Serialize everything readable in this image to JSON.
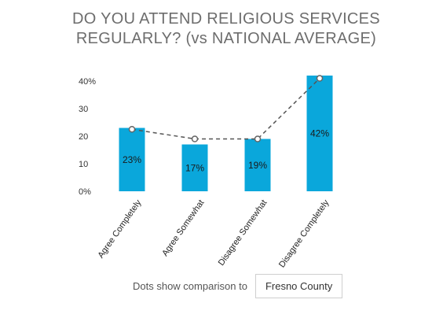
{
  "title": "DO YOU ATTEND RELIGIOUS SERVICES REGULARLY? (vs NATIONAL AVERAGE)",
  "footer": {
    "text": "Dots show comparison to",
    "selected": "Fresno County"
  },
  "colors": {
    "bar": "#0aa7db",
    "line": "#555555",
    "dot_stroke": "#666666"
  },
  "chart_data": {
    "type": "bar",
    "title": "DO YOU ATTEND RELIGIOUS SERVICES REGULARLY? (vs NATIONAL AVERAGE)",
    "categories": [
      "Agree Completely",
      "Agree Somewhat",
      "Disagree Somewhat",
      "Disagree Completely"
    ],
    "series": [
      {
        "values": [
          23,
          17,
          19,
          42
        ],
        "labels": [
          "23%",
          "17%",
          "19%",
          "42%"
        ]
      },
      {
        "type": "line",
        "style": "dashed",
        "values": [
          22.5,
          19,
          19,
          41
        ]
      }
    ],
    "y_ticks": [
      "0%",
      "10",
      "20",
      "30",
      "40%"
    ],
    "ylim": [
      0,
      40
    ],
    "grid": false
  }
}
